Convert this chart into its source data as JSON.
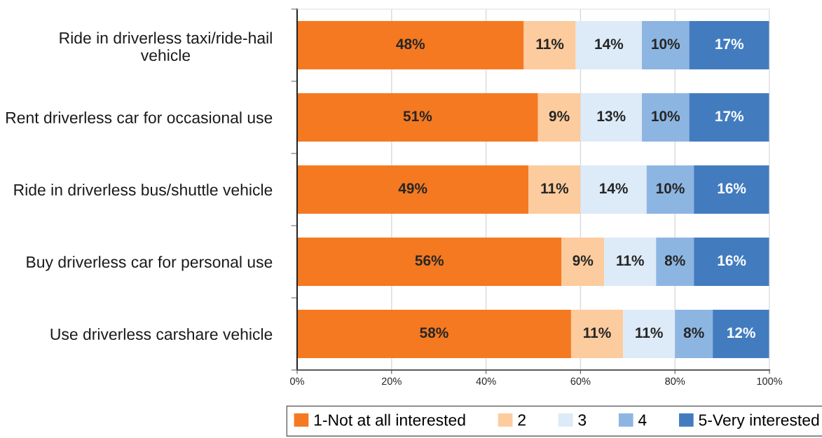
{
  "chart_data": {
    "type": "bar",
    "orientation": "horizontal",
    "stacked": true,
    "categories": [
      "Ride in driverless taxi/ride-hail\nvehicle",
      "Rent driverless car for occasional use",
      "Ride in driverless bus/shuttle vehicle",
      "Buy driverless car for personal use",
      "Use driverless carshare vehicle"
    ],
    "series": [
      {
        "name": "1-Not at all interested",
        "color": "#f47920",
        "values": [
          48,
          51,
          49,
          56,
          58
        ],
        "value_labels": [
          "48%",
          "51%",
          "49%",
          "56%",
          "58%"
        ]
      },
      {
        "name": "2",
        "color": "#fccb9e",
        "values": [
          11,
          9,
          11,
          9,
          11
        ],
        "value_labels": [
          "11%",
          "9%",
          "11%",
          "9%",
          "11%"
        ]
      },
      {
        "name": "3",
        "color": "#ddeaf7",
        "values": [
          14,
          13,
          14,
          11,
          11
        ],
        "value_labels": [
          "14%",
          "13%",
          "14%",
          "11%",
          "11%"
        ]
      },
      {
        "name": "4",
        "color": "#8db5e2",
        "values": [
          10,
          10,
          10,
          8,
          8
        ],
        "value_labels": [
          "10%",
          "10%",
          "10%",
          "8%",
          "8%"
        ]
      },
      {
        "name": "5-Very interested",
        "color": "#427cbf",
        "values": [
          17,
          17,
          16,
          16,
          12
        ],
        "value_labels": [
          "17%",
          "17%",
          "16%",
          "16%",
          "12%"
        ]
      }
    ],
    "xlim": [
      0,
      100
    ],
    "xticks": [
      {
        "value": 0,
        "label": "0%"
      },
      {
        "value": 20,
        "label": "20%"
      },
      {
        "value": 40,
        "label": "40%"
      },
      {
        "value": 60,
        "label": "60%"
      },
      {
        "value": 80,
        "label": "80%"
      },
      {
        "value": 100,
        "label": "100%"
      }
    ],
    "grid": "x",
    "legend": "bottom"
  }
}
